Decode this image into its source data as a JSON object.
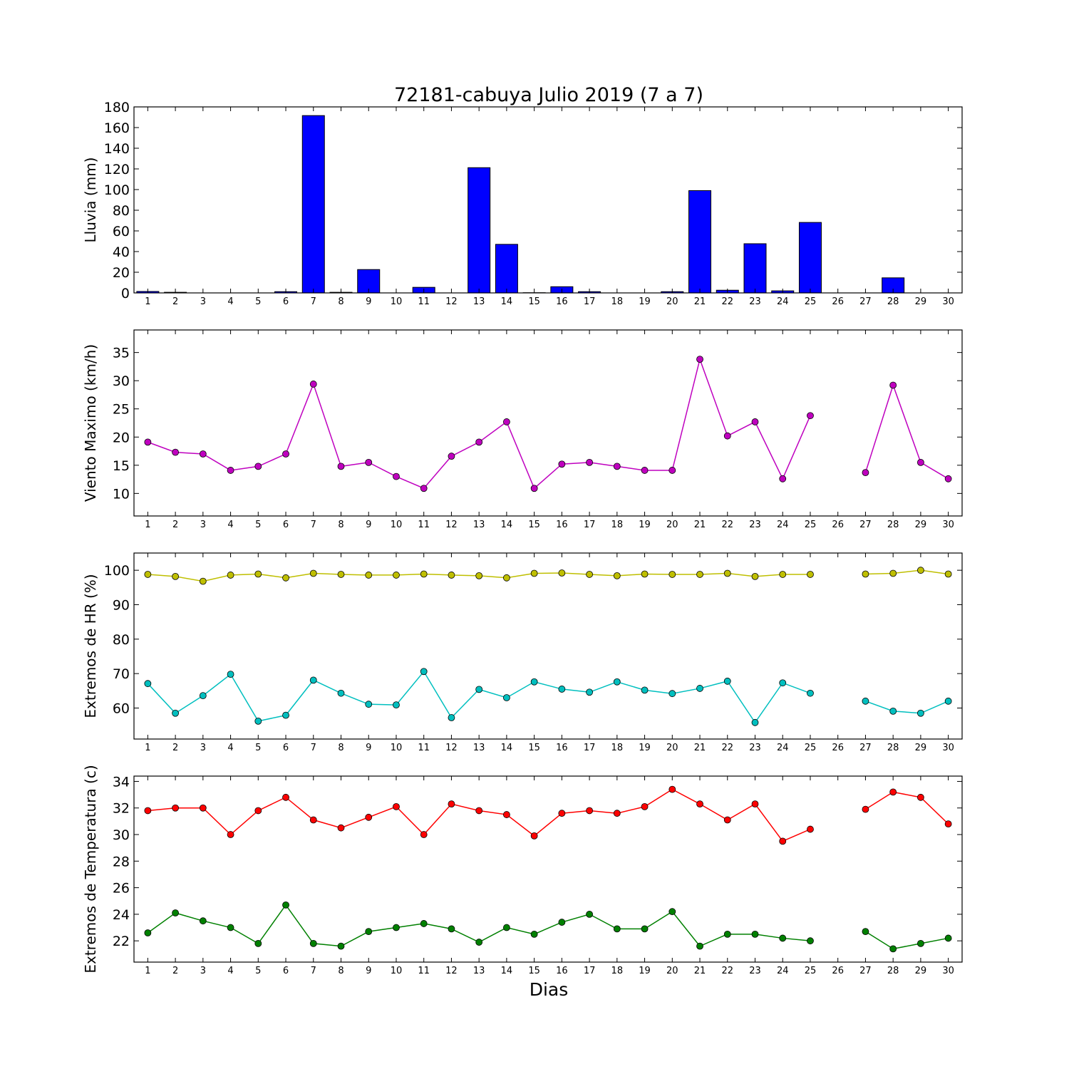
{
  "figure": {
    "title": "72181-cabuya Julio 2019  (7 a 7)",
    "xlabel": "Dias"
  },
  "chart_data": [
    {
      "type": "bar",
      "ylabel": "Lluvia (mm)",
      "ylim": [
        0,
        180
      ],
      "yticks": [
        0,
        20,
        40,
        60,
        80,
        100,
        120,
        140,
        160,
        180
      ],
      "xlim": [
        0.5,
        30.5
      ],
      "categories": [
        1,
        2,
        3,
        4,
        5,
        6,
        7,
        8,
        9,
        10,
        11,
        12,
        13,
        14,
        15,
        16,
        17,
        18,
        19,
        20,
        21,
        22,
        23,
        24,
        25,
        26,
        27,
        28,
        29,
        30
      ],
      "series": [
        {
          "color": "#0000ff",
          "values": [
            1.4,
            0.6,
            0,
            0,
            0,
            1.2,
            171.6,
            0.6,
            22.6,
            0,
            5.4,
            0,
            121.2,
            47.0,
            0.2,
            6.0,
            1.2,
            0,
            0,
            1.2,
            99.0,
            2.6,
            47.6,
            2.0,
            68.2,
            0,
            0,
            14.6,
            0,
            0
          ]
        }
      ]
    },
    {
      "type": "line",
      "ylabel": "Viento Maximo (km/h)",
      "ylim": [
        6,
        39
      ],
      "yticks": [
        10,
        15,
        20,
        25,
        30,
        35
      ],
      "xlim": [
        0.5,
        30.5
      ],
      "x": [
        1,
        2,
        3,
        4,
        5,
        6,
        7,
        8,
        9,
        10,
        11,
        12,
        13,
        14,
        15,
        16,
        17,
        18,
        19,
        20,
        21,
        22,
        23,
        24,
        25,
        26,
        27,
        28,
        29,
        30
      ],
      "series": [
        {
          "color": "#bf00bf",
          "values": [
            19.1,
            17.3,
            17.0,
            14.1,
            14.8,
            17.0,
            29.4,
            14.8,
            15.5,
            13.0,
            10.9,
            16.6,
            19.1,
            22.7,
            10.9,
            15.2,
            15.5,
            14.8,
            14.1,
            14.1,
            33.8,
            20.2,
            22.7,
            12.6,
            23.8,
            null,
            13.7,
            29.2,
            15.5,
            12.6
          ]
        }
      ]
    },
    {
      "type": "line",
      "ylabel": "Extremos de HR (%)",
      "ylim": [
        51,
        105
      ],
      "yticks": [
        60,
        70,
        80,
        90,
        100
      ],
      "xlim": [
        0.5,
        30.5
      ],
      "x": [
        1,
        2,
        3,
        4,
        5,
        6,
        7,
        8,
        9,
        10,
        11,
        12,
        13,
        14,
        15,
        16,
        17,
        18,
        19,
        20,
        21,
        22,
        23,
        24,
        25,
        26,
        27,
        28,
        29,
        30
      ],
      "series": [
        {
          "color": "#bfbf00",
          "values": [
            98.8,
            98.2,
            96.8,
            98.6,
            98.9,
            97.8,
            99.1,
            98.8,
            98.6,
            98.6,
            98.9,
            98.6,
            98.4,
            97.8,
            99.1,
            99.2,
            98.8,
            98.4,
            98.9,
            98.8,
            98.8,
            99.1,
            98.2,
            98.8,
            98.8,
            null,
            98.9,
            99.1,
            100.0,
            98.9
          ]
        },
        {
          "color": "#00bfbf",
          "values": [
            67.1,
            58.5,
            63.6,
            69.8,
            56.2,
            57.9,
            68.1,
            64.3,
            61.1,
            60.9,
            70.6,
            57.2,
            65.4,
            63.0,
            67.6,
            65.5,
            64.6,
            67.6,
            65.2,
            64.2,
            65.7,
            67.8,
            55.8,
            67.3,
            64.3,
            null,
            62.0,
            59.1,
            58.5,
            62.0
          ]
        }
      ]
    },
    {
      "type": "line",
      "ylabel": "Extremos de Temperatura (c)",
      "ylim": [
        20.4,
        34.4
      ],
      "yticks": [
        22,
        24,
        26,
        28,
        30,
        32,
        34
      ],
      "xlim": [
        0.5,
        30.5
      ],
      "x": [
        1,
        2,
        3,
        4,
        5,
        6,
        7,
        8,
        9,
        10,
        11,
        12,
        13,
        14,
        15,
        16,
        17,
        18,
        19,
        20,
        21,
        22,
        23,
        24,
        25,
        26,
        27,
        28,
        29,
        30
      ],
      "series": [
        {
          "color": "#ff0000",
          "values": [
            31.8,
            32.0,
            32.0,
            30.0,
            31.8,
            32.8,
            31.1,
            30.5,
            31.3,
            32.1,
            30.0,
            32.3,
            31.8,
            31.5,
            29.9,
            31.6,
            31.8,
            31.6,
            32.1,
            33.4,
            32.3,
            31.1,
            32.3,
            29.5,
            30.4,
            null,
            31.9,
            33.2,
            32.8,
            30.8
          ]
        },
        {
          "color": "#008000",
          "values": [
            22.6,
            24.1,
            23.5,
            23.0,
            21.8,
            24.7,
            21.8,
            21.6,
            22.7,
            23.0,
            23.3,
            22.9,
            21.9,
            23.0,
            22.5,
            23.4,
            24.0,
            22.9,
            22.9,
            24.2,
            21.6,
            22.5,
            22.5,
            22.2,
            22.0,
            null,
            22.7,
            21.4,
            21.8,
            22.2
          ]
        }
      ]
    }
  ]
}
